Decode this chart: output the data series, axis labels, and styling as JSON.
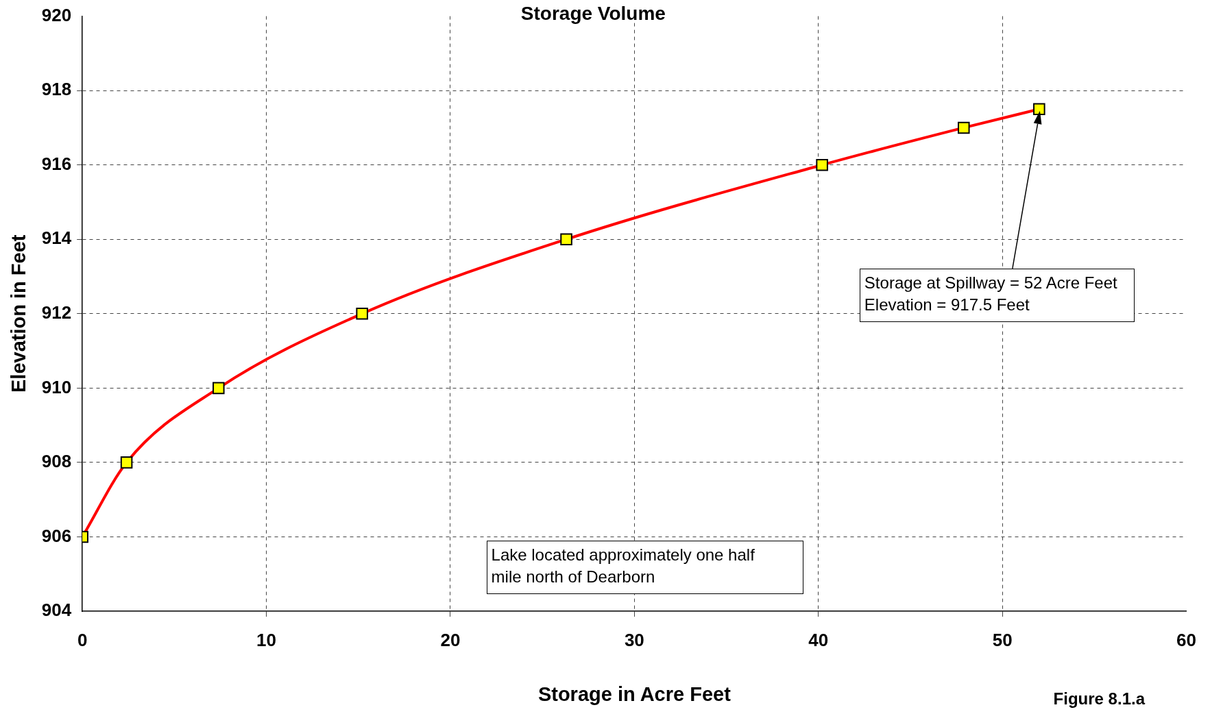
{
  "chart_data": {
    "type": "line",
    "title": "Storage Volume",
    "xlabel": "Storage in Acre Feet",
    "ylabel": "Elevation in Feet",
    "x": [
      0,
      2.4,
      7.4,
      15.2,
      26.3,
      40.2,
      47.9,
      52.0
    ],
    "series": [
      {
        "color": "#ff0000",
        "values": [
          906,
          908,
          910,
          912,
          914,
          916,
          917,
          917.5
        ]
      }
    ],
    "xlim": [
      0,
      60
    ],
    "xticks": [
      0,
      10,
      20,
      30,
      40,
      50,
      60
    ],
    "ylim": [
      904,
      920
    ],
    "yticks": [
      904,
      906,
      908,
      910,
      912,
      914,
      916,
      918,
      920
    ],
    "grid": true,
    "marker": "square",
    "legend": false,
    "annotations": [
      "Storage at Spillway = 52 Acre Feet\nElevation = 917.5 Feet",
      "Lake located approximately one half\nmile north of Dearborn",
      "Figure 8.1.a"
    ]
  }
}
